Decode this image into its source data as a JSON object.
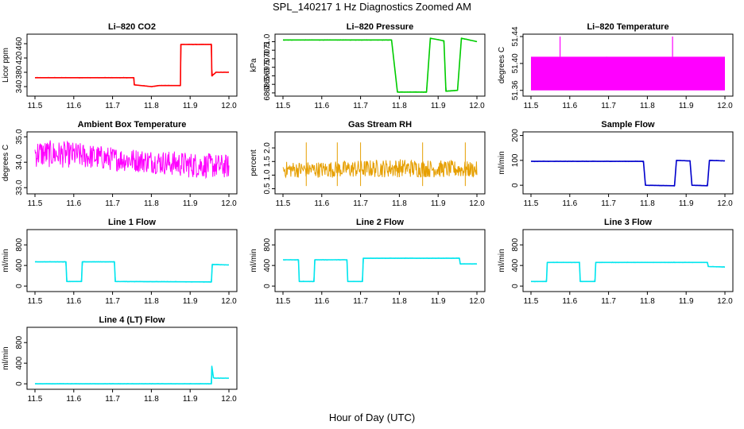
{
  "figure": {
    "title": "SPL_140217  1 Hz Diagnostics Zoomed AM",
    "xlabel": "Hour of Day (UTC)"
  },
  "chart_data": [
    {
      "type": "line",
      "title": "Li–820 CO2",
      "ylabel": "Licor ppm",
      "color": "#ff0000",
      "xlim": [
        11.5,
        12.0
      ],
      "ylim": [
        320,
        480
      ],
      "x_ticks": [
        "11.5",
        "11.6",
        "11.7",
        "11.8",
        "11.9",
        "12.0"
      ],
      "y_ticks": [
        340,
        380,
        420,
        460
      ],
      "x": [
        11.5,
        11.755,
        11.756,
        11.8,
        11.82,
        11.875,
        11.876,
        11.955,
        11.956,
        11.965,
        11.966,
        12.0
      ],
      "values": [
        365,
        365,
        345,
        340,
        343,
        343,
        458,
        458,
        370,
        378,
        380,
        380
      ]
    },
    {
      "type": "line",
      "title": "Li–820 Pressure",
      "ylabel": "kPa",
      "color": "#00cc00",
      "xlim": [
        11.5,
        12.0
      ],
      "ylim": [
        67.95,
        71.3
      ],
      "x_ticks": [
        "11.5",
        "11.6",
        "11.7",
        "11.8",
        "11.9",
        "12.0"
      ],
      "y_ticks": [
        68.0,
        68.5,
        69.0,
        69.5,
        70.0,
        70.5,
        71.0
      ],
      "x": [
        11.5,
        11.78,
        11.795,
        11.87,
        11.88,
        11.915,
        11.92,
        11.95,
        11.96,
        12.0
      ],
      "values": [
        71.1,
        71.1,
        68.05,
        68.05,
        71.2,
        71.05,
        68.1,
        68.15,
        71.2,
        71.0
      ]
    },
    {
      "type": "area",
      "title": "Li–820 Temperature",
      "ylabel": "degrees C",
      "color": "#ff00ff",
      "xlim": [
        11.5,
        12.0
      ],
      "ylim": [
        51.355,
        51.44
      ],
      "x_ticks": [
        "11.5",
        "11.6",
        "11.7",
        "11.8",
        "11.9",
        "12.0"
      ],
      "y_ticks": [
        51.36,
        51.4,
        51.44
      ],
      "x": [
        11.5,
        12.0
      ],
      "band_low": [
        51.36,
        51.36
      ],
      "band_high": [
        51.41,
        51.41
      ],
      "spikes": [
        [
          11.575,
          51.44
        ],
        [
          11.865,
          51.44
        ],
        [
          11.695,
          51.385
        ]
      ]
    },
    {
      "type": "line",
      "title": "Ambient Box Temperature",
      "ylabel": "degrees C",
      "color": "#ff00ff",
      "xlim": [
        11.5,
        12.0
      ],
      "ylim": [
        32.85,
        35.1
      ],
      "x_ticks": [
        "11.5",
        "11.6",
        "11.7",
        "11.8",
        "11.9",
        "12.0"
      ],
      "y_ticks": [
        33.0,
        34.0,
        35.0
      ],
      "x": [
        11.5,
        11.6,
        11.7,
        11.8,
        11.9,
        12.0
      ],
      "band_low": [
        33.6,
        33.6,
        33.5,
        33.4,
        33.2,
        33.2
      ],
      "band_high": [
        34.9,
        34.8,
        34.6,
        34.5,
        34.4,
        34.3
      ]
    },
    {
      "type": "line",
      "title": "Gas Stream RH",
      "ylabel": "percent",
      "color": "#e69f00",
      "xlim": [
        11.5,
        12.0
      ],
      "ylim": [
        0.4,
        2.5
      ],
      "x_ticks": [
        "11.5",
        "11.6",
        "11.7",
        "11.8",
        "11.9",
        "12.0"
      ],
      "y_ticks": [
        0.5,
        1.0,
        1.5,
        2.0
      ],
      "x": [
        11.5,
        11.6,
        11.7,
        11.8,
        11.9,
        12.0
      ],
      "band_low": [
        0.8,
        0.8,
        0.8,
        0.8,
        0.8,
        0.8
      ],
      "band_high": [
        1.5,
        1.5,
        1.55,
        1.6,
        1.55,
        1.5
      ]
    },
    {
      "type": "line",
      "title": "Sample Flow",
      "ylabel": "ml/min",
      "color": "#0000cc",
      "xlim": [
        11.5,
        12.0
      ],
      "ylim": [
        -25,
        205
      ],
      "x_ticks": [
        "11.5",
        "11.6",
        "11.7",
        "11.8",
        "11.9",
        "12.0"
      ],
      "y_ticks": [
        0,
        100,
        200
      ],
      "x": [
        11.5,
        11.79,
        11.795,
        11.87,
        11.875,
        11.91,
        11.915,
        11.955,
        11.96,
        12.0
      ],
      "values": [
        96,
        96,
        0,
        -2,
        100,
        98,
        0,
        -2,
        100,
        98
      ]
    },
    {
      "type": "line",
      "title": "Line 1 Flow",
      "ylabel": "ml/min",
      "color": "#00e5ee",
      "xlim": [
        11.5,
        12.0
      ],
      "ylim": [
        -60,
        1050
      ],
      "x_ticks": [
        "11.5",
        "11.6",
        "11.7",
        "11.8",
        "11.9",
        "12.0"
      ],
      "y_ticks": [
        0,
        400,
        800
      ],
      "x": [
        11.5,
        11.58,
        11.582,
        11.62,
        11.622,
        11.705,
        11.707,
        11.955,
        11.957,
        12.0
      ],
      "values": [
        470,
        470,
        90,
        90,
        470,
        470,
        90,
        80,
        420,
        410
      ]
    },
    {
      "type": "line",
      "title": "Line 2 Flow",
      "ylabel": "ml/min",
      "color": "#00e5ee",
      "xlim": [
        11.5,
        12.0
      ],
      "ylim": [
        -60,
        1050
      ],
      "x_ticks": [
        "11.5",
        "11.6",
        "11.7",
        "11.8",
        "11.9",
        "12.0"
      ],
      "y_ticks": [
        0,
        400,
        800
      ],
      "x": [
        11.5,
        11.54,
        11.542,
        11.58,
        11.582,
        11.665,
        11.667,
        11.705,
        11.707,
        11.955,
        11.957,
        12.0
      ],
      "values": [
        510,
        510,
        90,
        90,
        510,
        510,
        90,
        90,
        540,
        540,
        430,
        430
      ]
    },
    {
      "type": "line",
      "title": "Line 3 Flow",
      "ylabel": "ml/min",
      "color": "#00e5ee",
      "xlim": [
        11.5,
        12.0
      ],
      "ylim": [
        -60,
        1050
      ],
      "x_ticks": [
        "11.5",
        "11.6",
        "11.7",
        "11.8",
        "11.9",
        "12.0"
      ],
      "y_ticks": [
        0,
        400,
        800
      ],
      "x": [
        11.5,
        11.54,
        11.542,
        11.625,
        11.627,
        11.665,
        11.667,
        11.955,
        11.957,
        12.0
      ],
      "values": [
        90,
        90,
        460,
        460,
        90,
        90,
        460,
        460,
        380,
        370
      ]
    },
    {
      "type": "line",
      "title": "Line 4 (LT) Flow",
      "ylabel": "ml/min",
      "color": "#00e5ee",
      "xlim": [
        11.5,
        12.0
      ],
      "ylim": [
        -60,
        1050
      ],
      "x_ticks": [
        "11.5",
        "11.6",
        "11.7",
        "11.8",
        "11.9",
        "12.0"
      ],
      "y_ticks": [
        0,
        400,
        800
      ],
      "x": [
        11.5,
        11.955,
        11.956,
        11.96,
        11.962,
        12.0
      ],
      "values": [
        0,
        0,
        340,
        120,
        110,
        110
      ]
    }
  ]
}
